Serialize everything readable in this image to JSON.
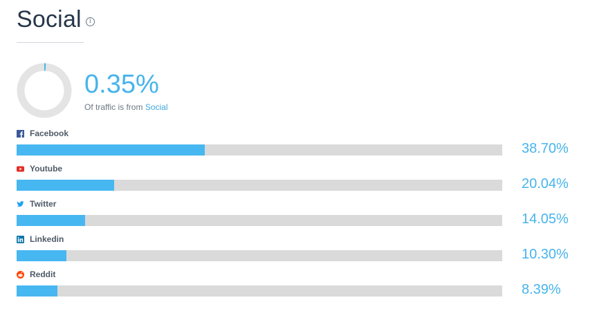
{
  "header": {
    "title": "Social",
    "info_icon": "info-icon"
  },
  "summary": {
    "value": "0.35%",
    "share": 0.0035,
    "caption_prefix": "Of traffic is from",
    "caption_link": "Social"
  },
  "channels": [
    {
      "name": "Facebook",
      "icon": "facebook-icon",
      "value": "38.70%",
      "share": 0.387,
      "icon_color": "#3b5998"
    },
    {
      "name": "Youtube",
      "icon": "youtube-icon",
      "value": "20.04%",
      "share": 0.2004,
      "icon_color": "#e52d27"
    },
    {
      "name": "Twitter",
      "icon": "twitter-icon",
      "value": "14.05%",
      "share": 0.1405,
      "icon_color": "#1da1f2"
    },
    {
      "name": "Linkedin",
      "icon": "linkedin-icon",
      "value": "10.30%",
      "share": 0.103,
      "icon_color": "#0e76a8"
    },
    {
      "name": "Reddit",
      "icon": "reddit-icon",
      "value": "8.39%",
      "share": 0.0839,
      "icon_color": "#ff4500"
    }
  ],
  "colors": {
    "accent": "#46b4ec",
    "bar_fill": "#47b7f1",
    "bar_track": "#dadada",
    "donut_track": "#e4e4e4"
  }
}
